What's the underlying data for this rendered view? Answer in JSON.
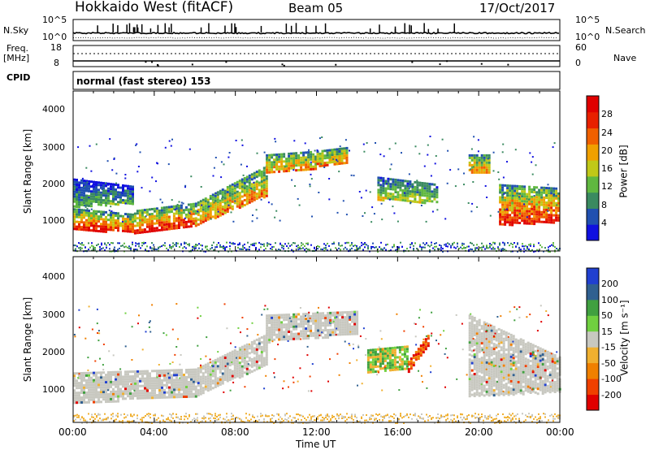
{
  "header": {
    "station": "Hokkaido West (fitACF)",
    "beam": "Beam 05",
    "date": "17/Oct/2017"
  },
  "top_panels": {
    "nsky_label": "N.Sky",
    "nsky_ticks": [
      "10^5",
      "10^0"
    ],
    "nsearch_label": "N.Search",
    "nsearch_ticks": [
      "10^5",
      "10^0"
    ],
    "freq_label_1": "Freq.",
    "freq_label_2": "[MHz]",
    "freq_ticks": [
      "18",
      "8"
    ],
    "nave_label": "Nave",
    "nave_ticks": [
      "60",
      "0"
    ],
    "cpid_label": "CPID",
    "cpid_text": "normal (fast stereo) 153"
  },
  "colors": {
    "power": [
      "#1010e0",
      "#2050b0",
      "#3a8a60",
      "#60b840",
      "#c0c818",
      "#f0a000",
      "#f06000",
      "#e82000",
      "#e00000"
    ],
    "velocity": [
      "#e00000",
      "#f04000",
      "#f08000",
      "#f0b030",
      "#c8c8c0",
      "#70d040",
      "#40a040",
      "#306090",
      "#2040d0"
    ]
  },
  "chart_data": [
    {
      "type": "heatmap",
      "parameter": "Power",
      "ylabel": "Slant Range [km]",
      "y_ticks": [
        "4000",
        "3000",
        "2000",
        "1000"
      ],
      "ylim": [
        200,
        4500
      ],
      "x_range_hours": [
        0,
        24
      ],
      "colorbar_label": "Power [dB]",
      "colorbar_ticks": [
        "28",
        "24",
        "20",
        "16",
        "12",
        "8",
        "4"
      ],
      "colorbar_range": [
        0,
        32
      ],
      "bands": [
        {
          "x": [
            0.0,
            3.0
          ],
          "y_lo": [
            1400,
            1500
          ],
          "y_hi": [
            2150,
            1950
          ],
          "kind": "power_scatter_edge"
        },
        {
          "x": [
            0.0,
            3.0
          ],
          "y_lo": [
            800,
            700
          ],
          "y_hi": [
            1350,
            1200
          ],
          "kind": "power_core"
        },
        {
          "x": [
            3.0,
            6.0
          ],
          "y_lo": [
            700,
            900
          ],
          "y_hi": [
            1300,
            1500
          ],
          "kind": "power_core"
        },
        {
          "x": [
            6.0,
            9.5
          ],
          "y_lo": [
            900,
            1700
          ],
          "y_hi": [
            1500,
            2500
          ],
          "kind": "power_mid"
        },
        {
          "x": [
            9.5,
            12.0
          ],
          "y_lo": [
            2300,
            2400
          ],
          "y_hi": [
            2800,
            2900
          ],
          "kind": "power_mid"
        },
        {
          "x": [
            12.0,
            13.5
          ],
          "y_lo": [
            2500,
            2600
          ],
          "y_hi": [
            2900,
            3000
          ],
          "kind": "power_mid"
        },
        {
          "x": [
            15.0,
            18.0
          ],
          "y_lo": [
            1600,
            1500
          ],
          "y_hi": [
            2200,
            2000
          ],
          "kind": "power_weak"
        },
        {
          "x": [
            19.5,
            20.5
          ],
          "y_lo": [
            2300,
            2300
          ],
          "y_hi": [
            2800,
            2800
          ],
          "kind": "power_mid"
        },
        {
          "x": [
            21.0,
            24.0
          ],
          "y_lo": [
            900,
            1000
          ],
          "y_hi": [
            2000,
            1900
          ],
          "kind": "power_core"
        }
      ],
      "ground_scatter_band": {
        "x": [
          0,
          24
        ],
        "y": [
          200,
          450
        ]
      }
    },
    {
      "type": "heatmap",
      "parameter": "Velocity",
      "ylabel": "Slant Range [km]",
      "xlabel": "Time UT",
      "x_ticks": [
        "00:00",
        "04:00",
        "08:00",
        "12:00",
        "16:00",
        "20:00",
        "00:00"
      ],
      "y_ticks": [
        "4000",
        "3000",
        "2000",
        "1000"
      ],
      "ylim": [
        200,
        4500
      ],
      "x_range_hours": [
        0,
        24
      ],
      "colorbar_label": "Velocity [m s⁻¹]",
      "colorbar_ticks": [
        "200",
        "100",
        "50",
        "15",
        "-15",
        "-50",
        "-100",
        "-200"
      ],
      "colorbar_range": [
        -250,
        250
      ],
      "bands": [
        {
          "x": [
            0.0,
            6.0
          ],
          "y_lo": [
            700,
            900
          ],
          "y_hi": [
            1500,
            1600
          ],
          "kind": "vel_ground"
        },
        {
          "x": [
            6.0,
            9.5
          ],
          "y_lo": [
            900,
            1700
          ],
          "y_hi": [
            1600,
            2500
          ],
          "kind": "vel_ground"
        },
        {
          "x": [
            9.5,
            14.0
          ],
          "y_lo": [
            2300,
            2500
          ],
          "y_hi": [
            3000,
            3100
          ],
          "kind": "vel_ground"
        },
        {
          "x": [
            14.5,
            16.5
          ],
          "y_lo": [
            1500,
            1600
          ],
          "y_hi": [
            2100,
            2200
          ],
          "kind": "vel_pos"
        },
        {
          "x": [
            16.5,
            17.5
          ],
          "y_lo": [
            1500,
            2200
          ],
          "y_hi": [
            1800,
            2500
          ],
          "kind": "vel_neg"
        },
        {
          "x": [
            19.5,
            24.0
          ],
          "y_lo": [
            900,
            1000
          ],
          "y_hi": [
            3000,
            1900
          ],
          "kind": "vel_ground"
        }
      ],
      "ground_scatter_band": {
        "x": [
          0,
          24
        ],
        "y": [
          200,
          450
        ]
      }
    }
  ]
}
